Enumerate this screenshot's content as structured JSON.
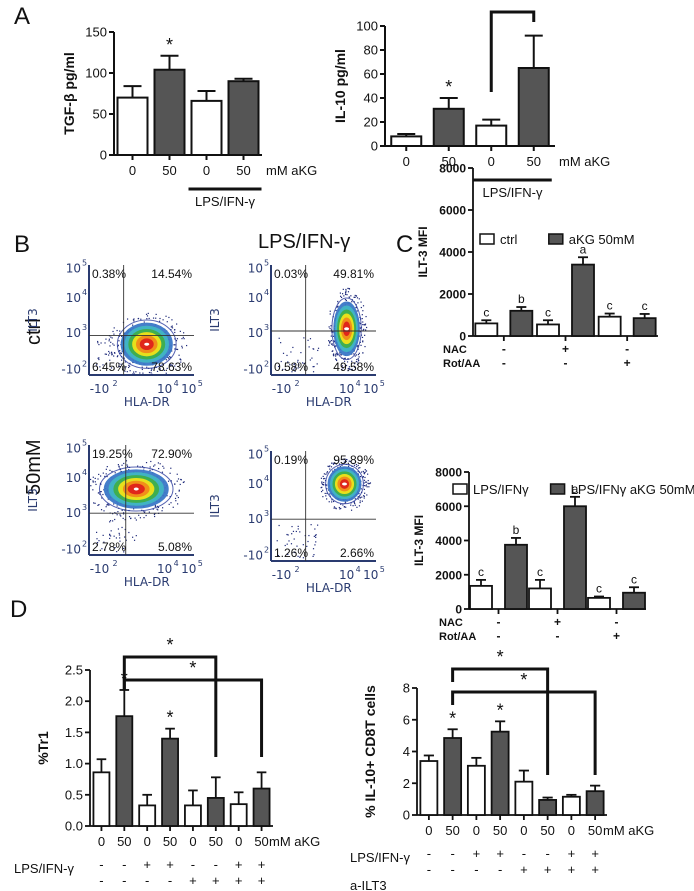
{
  "figure": {
    "panels": {
      "A": "A",
      "B": "B",
      "C": "C",
      "D": "D"
    },
    "colors": {
      "open_bar": "#ffffff",
      "filled_bar": "#555555",
      "axis": "#111111",
      "flow_axis_text": "#2a3b70"
    }
  },
  "chart_data": [
    {
      "id": "A1",
      "type": "bar",
      "ylabel": "TGF-β pg/ml",
      "ylim": [
        0,
        150
      ],
      "yticks": [
        "0",
        "50",
        "100",
        "150"
      ],
      "yticks_values": [
        0,
        50,
        100,
        150
      ],
      "categories": [
        "0",
        "50",
        "0",
        "50"
      ],
      "x_suffix": "mM aKG",
      "values": [
        70,
        104,
        66,
        90
      ],
      "errors": [
        14,
        17,
        12,
        3
      ],
      "fills": [
        "open",
        "filled",
        "open",
        "filled"
      ],
      "significance": [
        {
          "bar": 1,
          "label": "*"
        }
      ],
      "group_bar": {
        "from": 2,
        "to": 3,
        "label": "LPS/IFN-γ"
      }
    },
    {
      "id": "A2",
      "type": "bar",
      "ylabel": "IL-10 pg/ml",
      "ylim": [
        0,
        100
      ],
      "yticks": [
        "0",
        "20",
        "40",
        "60",
        "80",
        "100"
      ],
      "yticks_values": [
        0,
        20,
        40,
        60,
        80,
        100
      ],
      "categories": [
        "0",
        "50",
        "0",
        "50"
      ],
      "x_suffix": "mM aKG",
      "values": [
        8,
        31,
        17,
        65
      ],
      "errors": [
        2,
        9,
        5,
        27
      ],
      "fills": [
        "open",
        "filled",
        "open",
        "filled"
      ],
      "significance": [
        {
          "bar": 1,
          "label": "*"
        }
      ],
      "brackets": [
        {
          "from": 2,
          "to": 3,
          "label": "*"
        }
      ],
      "group_bar": {
        "from": 2,
        "to": 3,
        "label": "LPS/IFN-γ"
      }
    },
    {
      "id": "C1",
      "type": "bar",
      "legend": [
        {
          "label": "ctrl",
          "fill": "open"
        },
        {
          "label": "aKG 50mM",
          "fill": "filled"
        }
      ],
      "ylabel": "ILT-3 MFI",
      "ylim": [
        0,
        8000
      ],
      "yticks": [
        "0",
        "2000",
        "4000",
        "6000",
        "8000"
      ],
      "yticks_values": [
        0,
        2000,
        4000,
        6000,
        8000
      ],
      "groups": [
        {
          "NAC": "-",
          "RotAA": "-"
        },
        {
          "NAC": "+",
          "RotAA": "-"
        },
        {
          "NAC": "-",
          "RotAA": "+"
        }
      ],
      "row_labels": [
        "NAC",
        "Rot/AA"
      ],
      "series": [
        {
          "name": "ctrl",
          "values": [
            600,
            550,
            920
          ],
          "errors": [
            150,
            200,
            150
          ],
          "letters": [
            "c",
            "c",
            "c"
          ]
        },
        {
          "name": "aKG 50mM",
          "values": [
            1200,
            3400,
            850
          ],
          "errors": [
            180,
            350,
            200
          ],
          "letters": [
            "b",
            "a",
            "c"
          ]
        }
      ]
    },
    {
      "id": "C2",
      "type": "bar",
      "legend": [
        {
          "label": "LPS/IFNγ",
          "fill": "open"
        },
        {
          "label": "LPS/IFNγ aKG 50mM",
          "fill": "filled"
        }
      ],
      "ylabel": "ILT-3 MFI",
      "ylim": [
        0,
        8000
      ],
      "yticks": [
        "0",
        "2000",
        "4000",
        "6000",
        "8000"
      ],
      "yticks_values": [
        0,
        2000,
        4000,
        6000,
        8000
      ],
      "groups": [
        {
          "NAC": "-",
          "RotAA": "-"
        },
        {
          "NAC": "+",
          "RotAA": "-"
        },
        {
          "NAC": "-",
          "RotAA": "+"
        }
      ],
      "row_labels": [
        "NAC",
        "Rot/AA"
      ],
      "series": [
        {
          "name": "LPS/IFNγ",
          "values": [
            1350,
            1200,
            650
          ],
          "errors": [
            350,
            500,
            80
          ],
          "letters": [
            "c",
            "c",
            "c"
          ]
        },
        {
          "name": "LPS/IFNγ aKG 50mM",
          "values": [
            3750,
            6000,
            950
          ],
          "errors": [
            400,
            550,
            320
          ],
          "letters": [
            "b",
            "a",
            "c"
          ]
        }
      ]
    },
    {
      "id": "D1",
      "type": "bar",
      "ylabel": "%Tr1",
      "ylim": [
        0,
        2.5
      ],
      "yticks": [
        "0.0",
        "0.5",
        "1.0",
        "1.5",
        "2.0",
        "2.5"
      ],
      "yticks_values": [
        0,
        0.5,
        1.0,
        1.5,
        2.0,
        2.5
      ],
      "categories": [
        "0",
        "50",
        "0",
        "50",
        "0",
        "50",
        "0",
        "50"
      ],
      "x_suffix": "mM aKG",
      "values": [
        0.86,
        1.76,
        0.33,
        1.4,
        0.33,
        0.45,
        0.35,
        0.6
      ],
      "errors": [
        0.21,
        0.42,
        0.17,
        0.16,
        0.24,
        0.33,
        0.19,
        0.26
      ],
      "fills": [
        "open",
        "filled",
        "open",
        "filled",
        "open",
        "filled",
        "open",
        "filled"
      ],
      "significance": [
        {
          "bar": 1,
          "label": "*"
        },
        {
          "bar": 3,
          "label": "*"
        }
      ],
      "brackets": [
        {
          "from": 1,
          "to": 5,
          "label": "*"
        },
        {
          "from": 1,
          "to": 7,
          "label": "*"
        }
      ],
      "row_labels": [
        "LPS/IFN-γ",
        "a-ILT3"
      ],
      "rows": [
        [
          "-",
          "-",
          "+",
          "+",
          "-",
          "-",
          "+",
          "+"
        ],
        [
          "-",
          "-",
          "-",
          "-",
          "+",
          "+",
          "+",
          "+"
        ]
      ]
    },
    {
      "id": "D2",
      "type": "bar",
      "ylabel": "% IL-10+ CD8T cells",
      "ylim": [
        0,
        8
      ],
      "yticks": [
        "0",
        "2",
        "4",
        "6",
        "8"
      ],
      "yticks_values": [
        0,
        2,
        4,
        6,
        8
      ],
      "categories": [
        "0",
        "50",
        "0",
        "50",
        "0",
        "50",
        "0",
        "50"
      ],
      "x_suffix": "mM aKG",
      "values": [
        3.4,
        4.85,
        3.1,
        5.25,
        2.1,
        0.95,
        1.15,
        1.5
      ],
      "errors": [
        0.35,
        0.55,
        0.5,
        0.65,
        0.7,
        0.15,
        0.12,
        0.35
      ],
      "fills": [
        "open",
        "filled",
        "open",
        "filled",
        "open",
        "filled",
        "open",
        "filled"
      ],
      "significance": [
        {
          "bar": 1,
          "label": "*"
        },
        {
          "bar": 3,
          "label": "*"
        }
      ],
      "brackets": [
        {
          "from": 1,
          "to": 5,
          "label": "*"
        },
        {
          "from": 1,
          "to": 7,
          "label": "*"
        }
      ],
      "row_labels": [
        "LPS/IFN-γ",
        "a-ILT3"
      ],
      "rows": [
        [
          "-",
          "-",
          "+",
          "+",
          "-",
          "-",
          "+",
          "+"
        ],
        [
          "-",
          "-",
          "-",
          "-",
          "+",
          "+",
          "+",
          "+"
        ]
      ]
    }
  ],
  "flow": {
    "column_title": "LPS/IFN-γ",
    "row_labels": [
      "ctrl",
      "50mM"
    ],
    "x_label": "HLA-DR",
    "y_label": "ILT3",
    "x_ticks": [
      "-10",
      "10",
      "10"
    ],
    "x_tick_exps": [
      "2",
      "4",
      "5"
    ],
    "y_ticks": [
      "-10",
      "10",
      "10",
      "10"
    ],
    "y_tick_exps": [
      "2",
      "3",
      "4",
      "5"
    ],
    "plots": [
      {
        "id": "ctrl-ctrl",
        "quadrants": {
          "ul": "0.38%",
          "ur": "14.54%",
          "ll": "6.45%",
          "lr": "78.63%"
        }
      },
      {
        "id": "ctrl-lps",
        "quadrants": {
          "ul": "0.03%",
          "ur": "49.81%",
          "ll": "0.58%",
          "lr": "49.58%"
        }
      },
      {
        "id": "akg-ctrl",
        "quadrants": {
          "ul": "19.25%",
          "ur": "72.90%",
          "ll": "2.78%",
          "lr": "5.08%"
        }
      },
      {
        "id": "akg-lps",
        "quadrants": {
          "ul": "0.19%",
          "ur": "95.89%",
          "ll": "1.26%",
          "lr": "2.66%"
        }
      }
    ]
  }
}
